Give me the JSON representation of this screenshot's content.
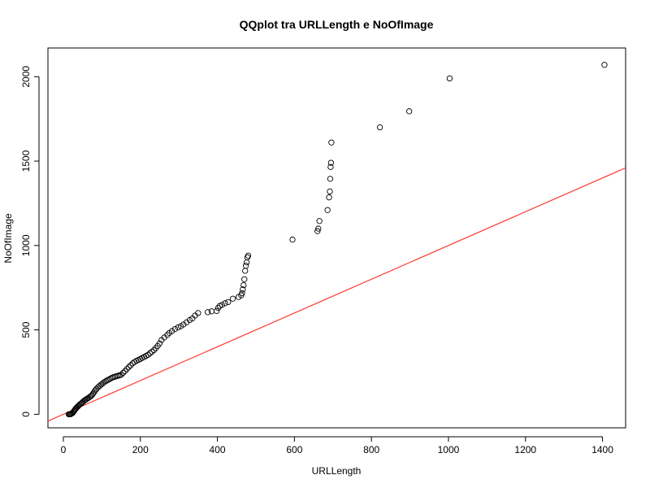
{
  "chart_data": {
    "type": "scatter",
    "title": "QQplot tra URLLength e NoOfImage",
    "xlabel": "URLLength",
    "ylabel": "NoOfImage",
    "xlim": [
      -40,
      1460
    ],
    "ylim": [
      -80,
      2170
    ],
    "x_ticks": [
      0,
      200,
      400,
      600,
      800,
      1000,
      1200,
      1400
    ],
    "y_ticks": [
      0,
      500,
      1000,
      1500,
      2000
    ],
    "grid": false,
    "reference_line": {
      "color": "#ff3b30",
      "slope": 1,
      "intercept": 0
    },
    "series": [
      {
        "marker": "open-circle",
        "color": "#000000",
        "x": [
          14,
          16,
          18,
          20,
          22,
          24,
          26,
          28,
          30,
          32,
          34,
          36,
          38,
          40,
          42,
          45,
          48,
          50,
          53,
          56,
          59,
          62,
          65,
          68,
          71,
          74,
          77,
          80,
          83,
          86,
          90,
          94,
          98,
          102,
          106,
          110,
          114,
          118,
          122,
          126,
          130,
          134,
          138,
          142,
          146,
          150,
          155,
          160,
          165,
          170,
          175,
          180,
          185,
          190,
          195,
          200,
          205,
          210,
          215,
          220,
          225,
          230,
          235,
          240,
          245,
          250,
          255,
          262,
          270,
          275,
          282,
          290,
          298,
          305,
          312,
          320,
          328,
          335,
          342,
          350,
          375,
          385,
          398,
          402,
          406,
          412,
          420,
          428,
          440,
          455,
          462,
          464,
          466,
          468,
          470,
          472,
          474,
          476,
          478,
          480,
          595,
          660,
          662,
          665,
          686,
          690,
          692,
          693,
          694,
          695,
          696,
          822,
          898,
          1003,
          1405
        ],
        "y": [
          0,
          0,
          0,
          2,
          5,
          8,
          14,
          20,
          27,
          33,
          38,
          43,
          47,
          52,
          57,
          62,
          67,
          72,
          78,
          84,
          88,
          93,
          97,
          102,
          107,
          113,
          122,
          132,
          142,
          150,
          160,
          168,
          176,
          183,
          190,
          196,
          201,
          206,
          211,
          216,
          220,
          223,
          226,
          228,
          231,
          234,
          245,
          256,
          268,
          280,
          290,
          302,
          310,
          317,
          322,
          328,
          334,
          340,
          346,
          352,
          362,
          370,
          380,
          392,
          405,
          420,
          440,
          455,
          470,
          482,
          493,
          505,
          515,
          522,
          532,
          545,
          558,
          568,
          585,
          600,
          605,
          610,
          612,
          630,
          642,
          648,
          658,
          665,
          685,
          695,
          705,
          718,
          740,
          765,
          800,
          850,
          880,
          900,
          930,
          940,
          1035,
          1085,
          1100,
          1145,
          1210,
          1285,
          1320,
          1395,
          1465,
          1490,
          1610,
          1700,
          1795,
          1990,
          2070
        ]
      }
    ]
  }
}
